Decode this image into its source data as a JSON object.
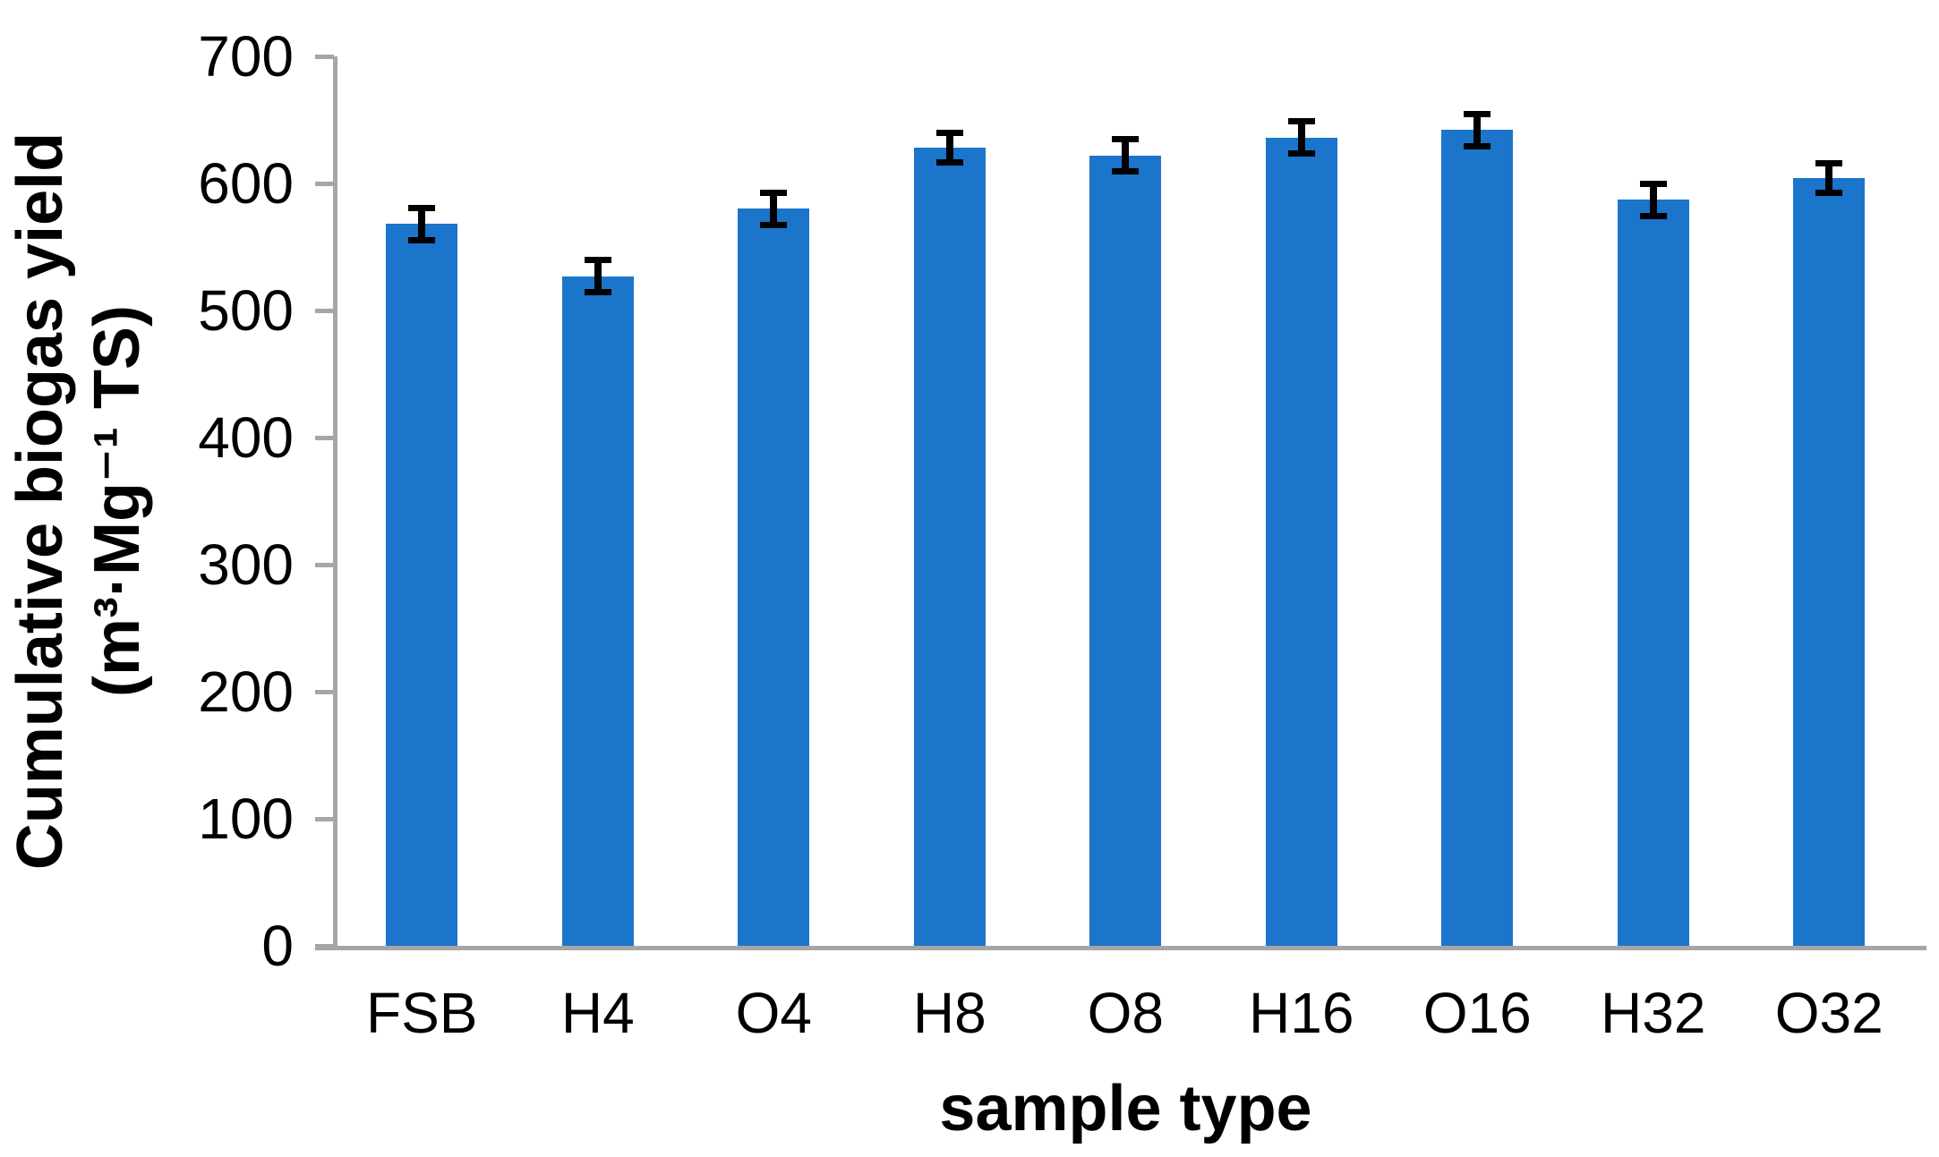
{
  "chart_data": {
    "type": "bar",
    "title": "",
    "xlabel": "sample type",
    "ylabel": "Cumulative biogas yield (m³·Mg⁻¹ TS)",
    "ylabel_lines": [
      "Cumulative biogas yield",
      "(m³·Mg⁻¹ TS)"
    ],
    "categories": [
      "FSB",
      "H4",
      "O4",
      "H8",
      "O8",
      "H16",
      "O16",
      "H32",
      "O32"
    ],
    "values": [
      568,
      527,
      580,
      628,
      622,
      636,
      642,
      587,
      604
    ],
    "error_bars": [
      13,
      13,
      13,
      12,
      13,
      13,
      13,
      13,
      12
    ],
    "ylim": [
      0,
      700
    ],
    "yticks": [
      0,
      100,
      200,
      300,
      400,
      500,
      600,
      700
    ],
    "grid": false,
    "legend": false,
    "bar_color": "#1B75CB",
    "axis_color": "#A6A6A6",
    "error_color": "#000000",
    "text_color": "#000000"
  }
}
